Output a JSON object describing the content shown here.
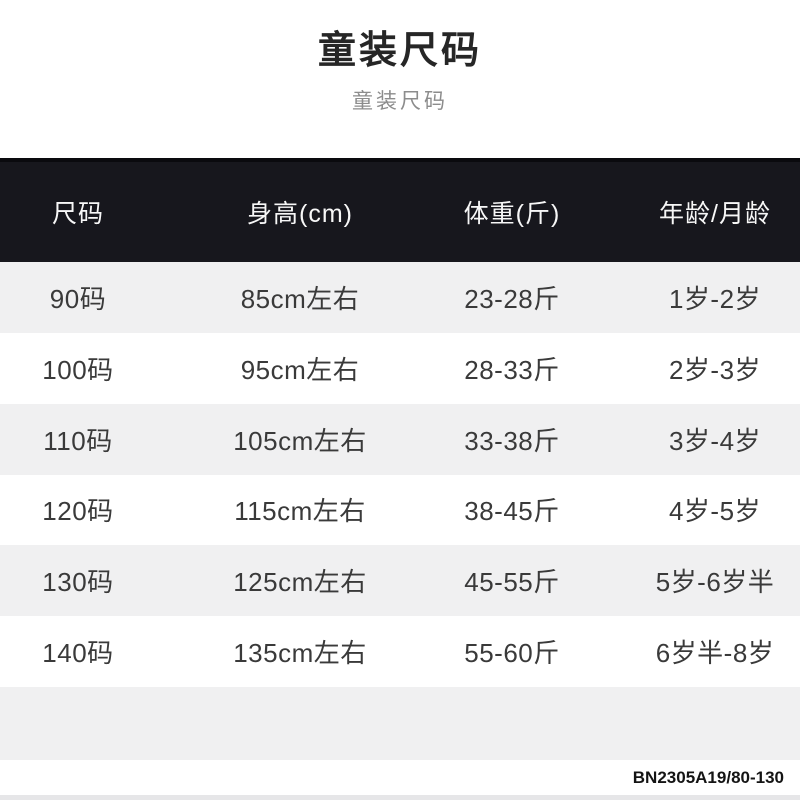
{
  "page": {
    "title": "童装尺码",
    "subtitle": "童装尺码",
    "product_code": "BN2305A19/80-130"
  },
  "colors": {
    "header_bg": "#17171d",
    "header_edge": "#0a0a0e",
    "header_text": "#f7f7f7",
    "stripe_bg": "#f0f0f1",
    "row_text": "#3a3a3a",
    "title_text": "#262626",
    "subtitle_text": "#8c8c8c",
    "code_text": "#141414",
    "bottom_strip": "#e6e6e8"
  },
  "size_table": {
    "columns": [
      "尺码",
      "身高(cm)",
      "体重(斤)",
      "年龄/月龄"
    ],
    "rows": [
      [
        "90码",
        "85cm左右",
        "23-28斤",
        "1岁-2岁"
      ],
      [
        "100码",
        "95cm左右",
        "28-33斤",
        "2岁-3岁"
      ],
      [
        "110码",
        "105cm左右",
        "33-38斤",
        "3岁-4岁"
      ],
      [
        "120码",
        "115cm左右",
        "38-45斤",
        "4岁-5岁"
      ],
      [
        "130码",
        "125cm左右",
        "45-55斤",
        "5岁-6岁半"
      ],
      [
        "140码",
        "135cm左右",
        "55-60斤",
        "6岁半-8岁"
      ]
    ]
  }
}
